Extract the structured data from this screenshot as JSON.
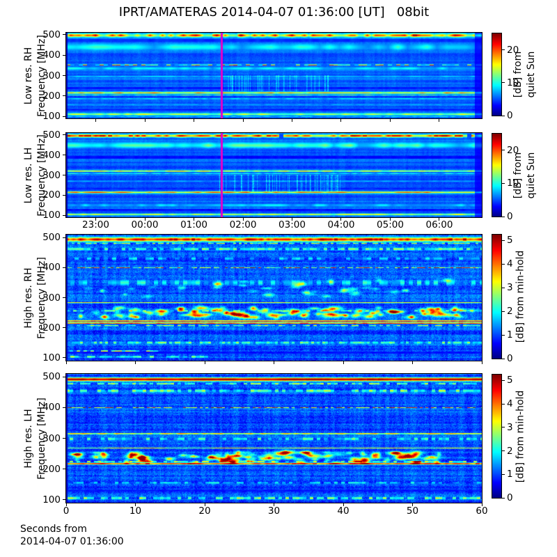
{
  "chart_data": {
    "type": "heatmap",
    "title": "IPRT/AMATERAS 2014-04-07 01:36:00 [UT]   08bit",
    "colormap": "jet",
    "background": "#ffffff",
    "frame_color": "#000000",
    "event_line": {
      "color": "#e600c8",
      "time_frac": 0.3735
    },
    "freq_axis": {
      "ticks": [
        500,
        400,
        300,
        200,
        100
      ],
      "range": [
        90,
        510
      ]
    },
    "hour_axis": {
      "labels": [
        "23:00",
        "00:00",
        "01:00",
        "02:00",
        "03:00",
        "04:00",
        "05:00",
        "06:00"
      ],
      "fracs": [
        0.0712,
        0.1893,
        0.3074,
        0.4255,
        0.5435,
        0.6616,
        0.7797,
        0.8978
      ]
    },
    "seconds_axis": {
      "ticks": [
        0,
        10,
        20,
        30,
        40,
        50,
        60
      ],
      "range": [
        0,
        60
      ],
      "xlabel_lines": [
        "Seconds from",
        "2014-04-07 01:36:00"
      ]
    },
    "panels": [
      {
        "id": "low-res-rh",
        "ylabel_lines": [
          "Low res. RH",
          "Frequency [MHz]"
        ],
        "colorbar": {
          "ticks": [
            0,
            10,
            20
          ],
          "vmax": 25,
          "label_lines": [
            "[dB] from",
            "quiet Sun"
          ]
        },
        "noise": {
          "base": 0.22,
          "row": 0.045,
          "col": 0.015,
          "pix": 0.02,
          "seed": 11
        },
        "event_line": true,
        "right_dark_col": true,
        "xaxis": "hour",
        "bands": [
          {
            "f": 497,
            "w": 16,
            "v": 0.72,
            "var": 0.28,
            "type": "mottled",
            "seg": 6,
            "seed": 101
          },
          {
            "f": 472,
            "w": 7,
            "v": 0.17,
            "type": "dark"
          },
          {
            "f": 440,
            "w": 30,
            "v": 0.34,
            "var": 0.1,
            "type": "wash",
            "seg": 14,
            "seed": 102
          },
          {
            "f": 352,
            "w": 5,
            "v": 0.62,
            "var": 0.33,
            "type": "dashed",
            "seg": 6,
            "seed": 103
          },
          {
            "f": 335,
            "w": 12,
            "v": 0.34,
            "var": 0.08,
            "type": "wash",
            "seg": 10,
            "seed": 104
          },
          {
            "f": 296,
            "w": 6,
            "v": 0.33,
            "var": 0.06,
            "type": "wash",
            "seg": 8,
            "seed": 105
          },
          {
            "f": 240,
            "w": 5,
            "v": 0.15,
            "type": "dark"
          },
          {
            "f": 215,
            "w": 8,
            "v": 0.7,
            "var": 0.16,
            "type": "solid",
            "seg": 7,
            "seed": 106
          },
          {
            "f": 204,
            "w": 5,
            "v": 0.42,
            "var": 0.12,
            "type": "wash",
            "seg": 6,
            "seed": 107
          },
          {
            "f": 186,
            "w": 4,
            "v": 0.36,
            "var": 0.1,
            "type": "wash",
            "seg": 6,
            "seed": 108
          },
          {
            "f": 158,
            "w": 4,
            "v": 0.3,
            "var": 0.06,
            "type": "wash",
            "seg": 6,
            "seed": 109
          },
          {
            "f": 132,
            "w": 5,
            "v": 0.16,
            "type": "dark"
          },
          {
            "f": 110,
            "w": 10,
            "v": 0.55,
            "var": 0.14,
            "type": "solid",
            "seg": 8,
            "seed": 110
          },
          {
            "f": 99,
            "w": 4,
            "v": 0.35,
            "var": 0.1,
            "type": "wash",
            "seg": 5,
            "seed": 111
          }
        ],
        "streaks": [
          {
            "t0": 0.375,
            "t1": 0.63,
            "f0": 225,
            "f1": 300,
            "strength": 0.18,
            "seed": 201
          }
        ]
      },
      {
        "id": "low-res-lh",
        "ylabel_lines": [
          "Low res. LH",
          "Frequency [MHz]"
        ],
        "colorbar": {
          "ticks": [
            0,
            10,
            20
          ],
          "vmax": 25,
          "label_lines": [
            "[dB] from",
            "quiet Sun"
          ]
        },
        "noise": {
          "base": 0.22,
          "row": 0.045,
          "col": 0.015,
          "pix": 0.02,
          "seed": 22
        },
        "event_line": true,
        "right_dark_col": true,
        "xaxis": "hour",
        "bands": [
          {
            "f": 496,
            "w": 14,
            "v": 0.78,
            "var": 0.26,
            "type": "mottled",
            "seg": 6,
            "darkchance": 0.14,
            "seed": 112
          },
          {
            "f": 448,
            "w": 26,
            "v": 0.4,
            "var": 0.12,
            "type": "wash",
            "seg": 12,
            "seed": 113
          },
          {
            "f": 388,
            "w": 6,
            "v": 0.13,
            "type": "dark"
          },
          {
            "f": 320,
            "w": 7,
            "v": 0.62,
            "var": 0.16,
            "type": "solid",
            "seg": 7,
            "seed": 114
          },
          {
            "f": 308,
            "w": 5,
            "v": 0.38,
            "var": 0.1,
            "type": "wash",
            "seg": 6,
            "seed": 115
          },
          {
            "f": 270,
            "w": 5,
            "v": 0.3,
            "var": 0.06,
            "type": "wash",
            "seg": 8,
            "seed": 116
          },
          {
            "f": 232,
            "w": 4,
            "v": 0.16,
            "type": "dark"
          },
          {
            "f": 214,
            "w": 8,
            "v": 0.74,
            "var": 0.18,
            "type": "solid",
            "seg": 7,
            "seed": 117
          },
          {
            "f": 150,
            "w": 12,
            "v": 0.32,
            "var": 0.08,
            "type": "wash",
            "seg": 9,
            "seed": 118
          },
          {
            "f": 127,
            "w": 6,
            "v": 0.14,
            "type": "dark"
          },
          {
            "f": 104,
            "w": 8,
            "v": 0.58,
            "var": 0.12,
            "type": "solid",
            "seg": 8,
            "seed": 119
          }
        ],
        "streaks": [
          {
            "t0": 0.37,
            "t1": 0.66,
            "f0": 220,
            "f1": 300,
            "strength": 0.2,
            "seed": 202
          }
        ]
      },
      {
        "id": "high-res-rh",
        "ylabel_lines": [
          "High res. RH",
          "Frequency [MHz]"
        ],
        "colorbar": {
          "ticks": [
            0,
            1,
            2,
            3,
            4,
            5
          ],
          "vmax": 5.25,
          "label_lines": [
            "[dB] from min-hold"
          ]
        },
        "noise": {
          "base": 0.2,
          "row": 0.05,
          "col": 0.03,
          "pix": 0.06,
          "seed": 33
        },
        "event_line": false,
        "right_dark_col": false,
        "xaxis": "seconds",
        "bands": [
          {
            "f": 494,
            "w": 13,
            "v": 0.86,
            "var": 0.14,
            "type": "mottled",
            "seg": 5,
            "seed": 120
          },
          {
            "f": 481,
            "w": 4,
            "v": 0.55,
            "var": 0.2,
            "type": "speckle",
            "gap": 0.45,
            "seg": 4,
            "seed": 121
          },
          {
            "f": 462,
            "w": 7,
            "v": 0.46,
            "var": 0.16,
            "type": "speckle",
            "gap": 0.35,
            "seg": 5,
            "seed": 122
          },
          {
            "f": 430,
            "w": 9,
            "v": 0.33,
            "var": 0.1,
            "type": "speckle",
            "gap": 0.4,
            "seg": 6,
            "seed": 123
          },
          {
            "f": 400,
            "w": 3,
            "v": 0.72,
            "var": 0.3,
            "type": "dashed",
            "seg": 4,
            "seed": 124
          },
          {
            "f": 350,
            "w": 16,
            "v": 0.34,
            "var": 0.12,
            "type": "speckle",
            "gap": 0.45,
            "seg": 6,
            "seed": 125
          },
          {
            "f": 283,
            "w": 2.5,
            "v": 0.82,
            "var": 0.12,
            "type": "thin",
            "seg": 30,
            "seed": 126
          },
          {
            "f": 256,
            "w": 5,
            "v": 0.4,
            "var": 0.18,
            "type": "speckle",
            "gap": 0.5,
            "seg": 5,
            "seed": 127
          },
          {
            "f": 222,
            "w": 4,
            "v": 0.92,
            "var": 0.08,
            "type": "mottled",
            "seg": 6,
            "seed": 128
          },
          {
            "f": 215,
            "w": 4,
            "v": 0.88,
            "var": 0.12,
            "type": "mottled",
            "seg": 6,
            "seed": 129
          },
          {
            "f": 207,
            "w": 4,
            "v": 0.5,
            "var": 0.18,
            "type": "speckle",
            "gap": 0.4,
            "seg": 5,
            "seed": 130
          },
          {
            "f": 150,
            "w": 7,
            "v": 0.45,
            "var": 0.15,
            "type": "speckle",
            "gap": 0.3,
            "seg": 4,
            "seed": 131
          },
          {
            "f": 122,
            "w": 4,
            "v": 0.55,
            "var": 0.2,
            "type": "speckle",
            "gap": 0.35,
            "seg": 5,
            "t1": 0.22,
            "seed": 132
          },
          {
            "f": 117,
            "w": 3,
            "v": 0.14,
            "type": "dark"
          },
          {
            "f": 103,
            "w": 6,
            "v": 0.5,
            "var": 0.18,
            "type": "speckle",
            "gap": 0.4,
            "seg": 6,
            "t1": 0.35,
            "seed": 133
          }
        ],
        "blobs": [
          {
            "f0": 235,
            "f1": 268,
            "count": 110,
            "amp": [
              0.18,
              0.5
            ],
            "rx": [
              3,
              9
            ],
            "ry": [
              1.5,
              3.2
            ],
            "t0": 0.02,
            "t1": 0.98,
            "seed": 301
          },
          {
            "f0": 300,
            "f1": 360,
            "count": 35,
            "amp": [
              0.1,
              0.3
            ],
            "rx": [
              3,
              8
            ],
            "ry": [
              1.5,
              3.0
            ],
            "t0": 0.05,
            "t1": 0.95,
            "seed": 302
          }
        ]
      },
      {
        "id": "high-res-lh",
        "ylabel_lines": [
          "High res. LH",
          "Frequency [MHz]"
        ],
        "colorbar": {
          "ticks": [
            0,
            1,
            2,
            3,
            4,
            5
          ],
          "vmax": 5.25,
          "label_lines": [
            "[dB] from min-hold"
          ]
        },
        "noise": {
          "base": 0.2,
          "row": 0.05,
          "col": 0.03,
          "pix": 0.06,
          "seed": 44
        },
        "event_line": false,
        "right_dark_col": false,
        "xaxis": "seconds",
        "bands": [
          {
            "f": 492,
            "w": 11,
            "v": 0.96,
            "var": 0.05,
            "type": "mottled",
            "seg": 8,
            "seed": 134
          },
          {
            "f": 478,
            "w": 5,
            "v": 0.5,
            "var": 0.2,
            "type": "speckle",
            "gap": 0.4,
            "seg": 5,
            "seed": 135
          },
          {
            "f": 455,
            "w": 9,
            "v": 0.46,
            "var": 0.16,
            "type": "speckle",
            "gap": 0.35,
            "seg": 5,
            "seed": 136
          },
          {
            "f": 400,
            "w": 3,
            "v": 0.78,
            "var": 0.25,
            "type": "dashed",
            "seg": 4,
            "seed": 137
          },
          {
            "f": 315,
            "w": 4,
            "v": 0.68,
            "var": 0.2,
            "type": "solid",
            "seg": 6,
            "seed": 138
          },
          {
            "f": 298,
            "w": 8,
            "v": 0.4,
            "var": 0.16,
            "type": "speckle",
            "gap": 0.45,
            "seg": 5,
            "seed": 139
          },
          {
            "f": 268,
            "w": 2.5,
            "v": 0.6,
            "var": 0.15,
            "type": "thin",
            "seg": 25,
            "seed": 140
          },
          {
            "f": 224,
            "w": 4,
            "v": 0.55,
            "var": 0.2,
            "type": "speckle",
            "gap": 0.4,
            "seg": 5,
            "seed": 142
          },
          {
            "f": 217,
            "w": 5,
            "v": 0.88,
            "var": 0.12,
            "type": "mottled",
            "seg": 6,
            "seed": 141
          },
          {
            "f": 155,
            "w": 6,
            "v": 0.33,
            "var": 0.12,
            "type": "speckle",
            "gap": 0.45,
            "seg": 5,
            "seed": 143
          },
          {
            "f": 130,
            "w": 4,
            "v": 0.15,
            "type": "dark"
          },
          {
            "f": 105,
            "w": 7,
            "v": 0.5,
            "var": 0.16,
            "type": "speckle",
            "gap": 0.35,
            "seg": 5,
            "seed": 144
          }
        ],
        "blobs": [
          {
            "f0": 222,
            "f1": 255,
            "count": 120,
            "amp": [
              0.18,
              0.5
            ],
            "rx": [
              3,
              9
            ],
            "ry": [
              1.5,
              3.2
            ],
            "t0": 0.02,
            "t1": 0.9,
            "seed": 303
          }
        ]
      }
    ]
  }
}
